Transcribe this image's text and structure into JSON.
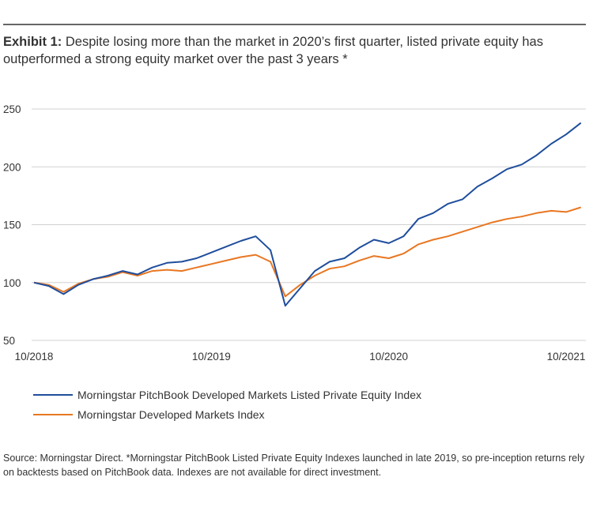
{
  "exhibit": {
    "label": "Exhibit 1:",
    "text": " Despite losing more than the market in 2020’s first quarter, listed private equity has outperformed a strong equity market over the past 3 years *"
  },
  "chart_data": {
    "type": "line",
    "title": "",
    "xlabel": "",
    "ylabel": "",
    "ylim": [
      50,
      250
    ],
    "yticks": [
      50,
      100,
      150,
      200,
      250
    ],
    "xticks": [
      "10/2018",
      "10/2019",
      "10/2020",
      "10/2021"
    ],
    "grid": "horizontal",
    "legend": "bottom-left",
    "x": [
      "2018-10",
      "2018-11",
      "2018-12",
      "2019-01",
      "2019-02",
      "2019-03",
      "2019-04",
      "2019-05",
      "2019-06",
      "2019-07",
      "2019-08",
      "2019-09",
      "2019-10",
      "2019-11",
      "2019-12",
      "2020-01",
      "2020-02",
      "2020-03",
      "2020-04",
      "2020-05",
      "2020-06",
      "2020-07",
      "2020-08",
      "2020-09",
      "2020-10",
      "2020-11",
      "2020-12",
      "2021-01",
      "2021-02",
      "2021-03",
      "2021-04",
      "2021-05",
      "2021-06",
      "2021-07",
      "2021-08",
      "2021-09",
      "2021-10",
      "2021-11"
    ],
    "series": [
      {
        "name": "Morningstar PitchBook Developed Markets Listed Private Equity Index",
        "color": "#1f4e9c",
        "values": [
          100,
          97,
          90,
          98,
          103,
          106,
          110,
          107,
          113,
          117,
          118,
          121,
          126,
          131,
          136,
          140,
          128,
          80,
          95,
          110,
          118,
          121,
          130,
          137,
          134,
          140,
          155,
          160,
          168,
          172,
          183,
          190,
          198,
          202,
          210,
          220,
          228,
          238
        ]
      },
      {
        "name": "Morningstar Developed Markets Index",
        "color": "#e87722",
        "values": [
          100,
          98,
          92,
          99,
          103,
          105,
          109,
          106,
          110,
          111,
          110,
          113,
          116,
          119,
          122,
          124,
          118,
          88,
          98,
          106,
          112,
          114,
          119,
          123,
          121,
          125,
          133,
          137,
          140,
          144,
          148,
          152,
          155,
          157,
          160,
          162,
          161,
          165
        ]
      }
    ]
  },
  "source_note": "Source: Morningstar Direct. *Morningstar PitchBook Listed Private Equity Indexes launched in late 2019, so pre-inception returns rely on backtests based on PitchBook data. Indexes are not available for direct investment."
}
